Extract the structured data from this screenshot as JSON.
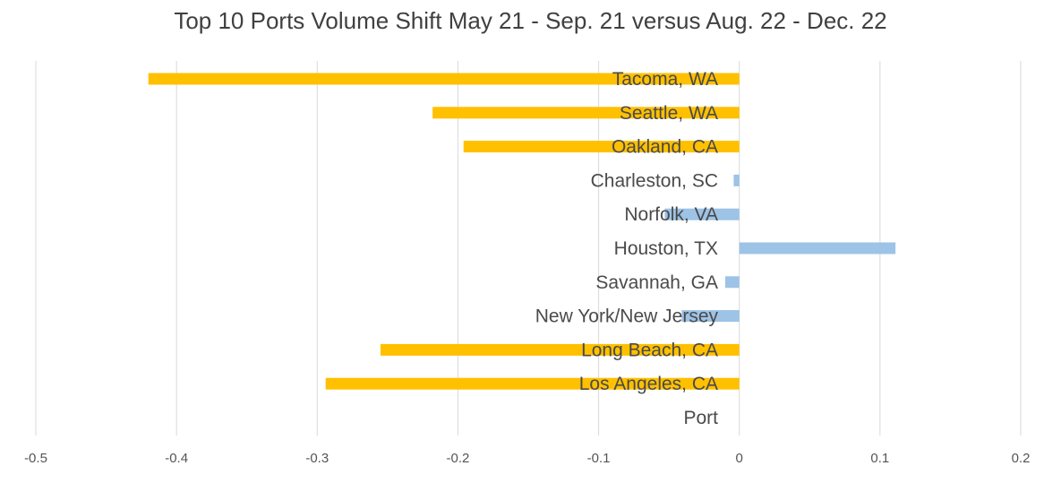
{
  "chart_data": {
    "type": "bar",
    "orientation": "horizontal",
    "title": "Top 10 Ports Volume Shift May 21 - Sep. 21 versus Aug. 22 - Dec. 22",
    "axis_title": "Port",
    "categories": [
      "Tacoma, WA",
      "Seattle, WA",
      "Oakland, CA",
      "Charleston, SC",
      "Norfolk, VA",
      "Houston, TX",
      "Savannah, GA",
      "New York/New Jersey",
      "Long Beach, CA",
      "Los Angeles, CA"
    ],
    "values": [
      -0.42,
      -0.218,
      -0.196,
      -0.004,
      -0.053,
      0.111,
      -0.01,
      -0.041,
      -0.255,
      -0.294
    ],
    "bar_colors": [
      "#FFC000",
      "#FFC000",
      "#FFC000",
      "#9DC3E6",
      "#9DC3E6",
      "#9DC3E6",
      "#9DC3E6",
      "#9DC3E6",
      "#FFC000",
      "#FFC000"
    ],
    "xlim": [
      -0.5,
      0.2
    ],
    "xticks": [
      -0.5,
      -0.4,
      -0.3,
      -0.2,
      -0.1,
      0,
      0.1,
      0.2
    ],
    "xtick_labels": [
      "-0.5",
      "-0.4",
      "-0.3",
      "-0.2",
      "-0.1",
      "0",
      "0.1",
      "0.2"
    ],
    "grid": "vertical",
    "gridline_color": "#D9D9D9"
  }
}
